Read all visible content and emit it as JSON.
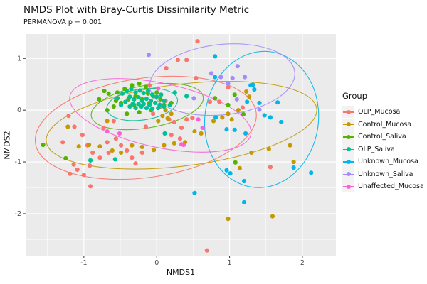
{
  "header": {
    "title": "NMDS Plot with Bray-Curtis Dissimilarity Metric",
    "subtitle": "PERMANOVA p = 0.001"
  },
  "legend": {
    "title": "Group"
  },
  "colors": {
    "panel_bg": "#EBEBEB",
    "grid": "#FFFFFF",
    "tick_text": "#4D4D4D",
    "tick_mark": "#333333",
    "legend_key_bg": "#F2F2F2"
  },
  "chart_data": {
    "type": "scatter",
    "title": "NMDS Plot with Bray-Curtis Dissimilarity Metric",
    "subtitle": "PERMANOVA p = 0.001",
    "xlabel": "NMDS1",
    "ylabel": "NMDS2",
    "xlim": [
      -1.8,
      2.46
    ],
    "ylim": [
      -2.81,
      1.47
    ],
    "x_ticks": [
      -1,
      0,
      1,
      2
    ],
    "y_ticks": [
      1,
      0,
      -1,
      -2
    ],
    "x_minor": [
      -1.5,
      -0.5,
      0.5,
      1.5
    ],
    "y_minor": [
      0.5,
      -0.5,
      -1.5,
      -2.5
    ],
    "legend_position": "right",
    "series": [
      {
        "name": "OLP_Mucosa",
        "color": "#F8766D",
        "ellipse": {
          "cx": -0.15,
          "cy": -0.34,
          "rx": 1.53,
          "ry": 0.96,
          "angle": -8
        },
        "points": [
          [
            -1.21,
            -0.11
          ],
          [
            -1.13,
            -0.32
          ],
          [
            -1.02,
            -0.48
          ],
          [
            -1.29,
            -0.62
          ],
          [
            -0.95,
            -0.68
          ],
          [
            -0.88,
            -0.82
          ],
          [
            -0.78,
            -0.92
          ],
          [
            -0.66,
            -0.82
          ],
          [
            -0.68,
            -0.62
          ],
          [
            -0.56,
            -0.55
          ],
          [
            -0.49,
            -0.68
          ],
          [
            -0.41,
            -0.78
          ],
          [
            -0.34,
            -0.92
          ],
          [
            -0.29,
            -1.03
          ],
          [
            -0.2,
            -0.82
          ],
          [
            -1.14,
            -1.05
          ],
          [
            -1.09,
            -1.15
          ],
          [
            -1.0,
            -1.25
          ],
          [
            -0.92,
            -1.07
          ],
          [
            -0.91,
            -1.47
          ],
          [
            -1.19,
            -1.23
          ],
          [
            0.29,
            0.97
          ],
          [
            0.41,
            0.97
          ],
          [
            0.56,
            1.33
          ],
          [
            0.54,
            0.62
          ],
          [
            0.73,
            0.16
          ],
          [
            0.86,
            0.16
          ],
          [
            0.17,
            -0.18
          ],
          [
            0.24,
            -0.23
          ],
          [
            0.41,
            -0.18
          ],
          [
            0.49,
            -0.15
          ],
          [
            0.32,
            -0.55
          ],
          [
            0.98,
            0.44
          ],
          [
            1.18,
            0.05
          ],
          [
            1.56,
            -1.1
          ],
          [
            0.69,
            -2.71
          ],
          [
            -0.15,
            -0.32
          ],
          [
            -0.05,
            -0.07
          ],
          [
            0.05,
            0.07
          ],
          [
            0.12,
            0.18
          ],
          [
            -0.59,
            -0.21
          ],
          [
            -0.73,
            -0.34
          ],
          [
            0.2,
            -0.48
          ],
          [
            0.34,
            -0.34
          ],
          [
            0.13,
            0.81
          ],
          [
            -0.1,
            0.48
          ]
        ]
      },
      {
        "name": "Control_Mucosa",
        "color": "#C49A00",
        "ellipse": {
          "cx": 0.34,
          "cy": -0.29,
          "rx": 1.87,
          "ry": 0.79,
          "angle": -7
        },
        "points": [
          [
            0.08,
            -0.11
          ],
          [
            0.15,
            -0.16
          ],
          [
            0.02,
            -0.21
          ],
          [
            0.2,
            -0.07
          ],
          [
            0.12,
            0.0
          ],
          [
            -1.07,
            -0.7
          ],
          [
            -0.93,
            -0.67
          ],
          [
            -0.78,
            -0.7
          ],
          [
            -0.61,
            -0.78
          ],
          [
            -0.49,
            -0.82
          ],
          [
            -0.34,
            -0.68
          ],
          [
            -0.2,
            -0.71
          ],
          [
            -0.04,
            -0.77
          ],
          [
            0.1,
            -0.68
          ],
          [
            0.24,
            -0.64
          ],
          [
            0.39,
            -0.62
          ],
          [
            0.52,
            -0.41
          ],
          [
            0.61,
            -0.45
          ],
          [
            0.78,
            -0.21
          ],
          [
            0.9,
            -0.14
          ],
          [
            1.23,
            0.36
          ],
          [
            1.27,
            0.26
          ],
          [
            1.12,
            0.0
          ],
          [
            1.03,
            -0.18
          ],
          [
            0.98,
            -0.07
          ],
          [
            1.3,
            -0.82
          ],
          [
            1.54,
            -0.75
          ],
          [
            1.83,
            -0.68
          ],
          [
            1.88,
            -1.0
          ],
          [
            1.14,
            -1.12
          ],
          [
            0.98,
            -2.1
          ],
          [
            1.59,
            -2.05
          ],
          [
            -0.68,
            -0.21
          ],
          [
            -1.22,
            -0.32
          ]
        ]
      },
      {
        "name": "Control_Saliva",
        "color": "#53B400",
        "ellipse": {
          "cx": -0.13,
          "cy": 0.07,
          "rx": 0.78,
          "ry": 0.41,
          "angle": -10
        },
        "points": [
          [
            -0.54,
            0.34
          ],
          [
            -0.44,
            0.41
          ],
          [
            -0.34,
            0.48
          ],
          [
            -0.24,
            0.51
          ],
          [
            -0.15,
            0.45
          ],
          [
            -0.29,
            0.27
          ],
          [
            -0.39,
            0.21
          ],
          [
            -0.49,
            0.14
          ],
          [
            -0.59,
            0.07
          ],
          [
            -0.68,
            0.0
          ],
          [
            -0.2,
            0.21
          ],
          [
            -0.1,
            0.14
          ],
          [
            -0.05,
            0.27
          ],
          [
            0.0,
            0.34
          ],
          [
            0.05,
            0.21
          ],
          [
            0.1,
            0.1
          ],
          [
            0.2,
            0.14
          ],
          [
            -0.08,
            0.0
          ],
          [
            -0.24,
            -0.04
          ],
          [
            -0.41,
            -0.07
          ],
          [
            -0.56,
            0.18
          ],
          [
            -0.66,
            0.32
          ],
          [
            -0.31,
            0.1
          ],
          [
            -0.12,
            0.32
          ],
          [
            -1.56,
            -0.67
          ],
          [
            -1.25,
            -0.93
          ],
          [
            0.8,
            0.23
          ],
          [
            0.98,
            0.1
          ],
          [
            1.08,
            -1.01
          ],
          [
            1.19,
            -0.08
          ],
          [
            1.07,
            0.3
          ],
          [
            -0.72,
            0.37
          ],
          [
            -0.79,
            0.21
          ]
        ]
      },
      {
        "name": "OLP_Saliva",
        "color": "#00C094",
        "ellipse": {
          "cx": -0.2,
          "cy": 0.11,
          "rx": 0.49,
          "ry": 0.3,
          "angle": -8
        },
        "points": [
          [
            -0.47,
            0.32
          ],
          [
            -0.41,
            0.37
          ],
          [
            -0.35,
            0.41
          ],
          [
            -0.29,
            0.34
          ],
          [
            -0.23,
            0.38
          ],
          [
            -0.18,
            0.33
          ],
          [
            -0.12,
            0.37
          ],
          [
            -0.06,
            0.3
          ],
          [
            0.0,
            0.26
          ],
          [
            0.06,
            0.3
          ],
          [
            -0.37,
            0.26
          ],
          [
            -0.31,
            0.21
          ],
          [
            -0.25,
            0.25
          ],
          [
            -0.2,
            0.18
          ],
          [
            -0.14,
            0.22
          ],
          [
            -0.08,
            0.18
          ],
          [
            -0.02,
            0.14
          ],
          [
            0.04,
            0.1
          ],
          [
            -0.43,
            0.16
          ],
          [
            -0.49,
            0.1
          ],
          [
            -0.37,
            0.07
          ],
          [
            -0.29,
            0.04
          ],
          [
            -0.21,
            0.07
          ],
          [
            -0.14,
            0.04
          ],
          [
            -0.06,
            0.03
          ],
          [
            0.02,
            0.04
          ],
          [
            0.1,
            0.07
          ],
          [
            -0.33,
            0.12
          ],
          [
            -0.25,
            0.12
          ],
          [
            -0.18,
            0.12
          ],
          [
            -0.1,
            0.1
          ],
          [
            -0.54,
            0.23
          ],
          [
            0.1,
            0.18
          ],
          [
            0.18,
            0.1
          ],
          [
            0.41,
            0.27
          ],
          [
            0.25,
            0.34
          ],
          [
            0.11,
            -0.45
          ],
          [
            -0.91,
            -0.97
          ],
          [
            -0.57,
            -0.95
          ]
        ]
      },
      {
        "name": "Unknown_Mucosa",
        "color": "#00B6EB",
        "ellipse": {
          "cx": 1.44,
          "cy": -0.18,
          "rx": 0.78,
          "ry": 1.32,
          "angle": 8
        },
        "points": [
          [
            0.8,
            1.04
          ],
          [
            0.8,
            0.64
          ],
          [
            1.32,
            0.49
          ],
          [
            1.34,
            0.4
          ],
          [
            1.24,
            0.16
          ],
          [
            1.41,
            0.14
          ],
          [
            1.66,
            0.15
          ],
          [
            1.48,
            -0.1
          ],
          [
            1.56,
            -0.14
          ],
          [
            1.71,
            -0.23
          ],
          [
            1.29,
            0.48
          ],
          [
            0.81,
            -0.14
          ],
          [
            0.96,
            -0.37
          ],
          [
            1.07,
            -0.38
          ],
          [
            1.22,
            -0.45
          ],
          [
            0.96,
            -1.16
          ],
          [
            1.88,
            -1.11
          ],
          [
            1.01,
            -1.22
          ],
          [
            0.52,
            -1.6
          ],
          [
            1.2,
            -1.37
          ],
          [
            1.2,
            -1.78
          ],
          [
            2.12,
            -1.21
          ]
        ]
      },
      {
        "name": "Unknown_Saliva",
        "color": "#A58AFF",
        "ellipse": {
          "cx": 0.9,
          "cy": 0.59,
          "rx": 1.0,
          "ry": 0.68,
          "angle": -6
        },
        "points": [
          [
            -0.11,
            1.07
          ],
          [
            0.75,
            0.71
          ],
          [
            0.88,
            0.64
          ],
          [
            1.04,
            0.62
          ],
          [
            1.21,
            0.64
          ],
          [
            1.11,
            0.85
          ],
          [
            0.51,
            0.23
          ],
          [
            1.1,
            0.21
          ],
          [
            1.41,
            0.01
          ],
          [
            0.98,
            0.51
          ]
        ]
      },
      {
        "name": "Unaffected_Mucosa",
        "color": "#FB61D7",
        "ellipse": {
          "cx": 0.05,
          "cy": -0.1,
          "rx": 1.27,
          "ry": 0.62,
          "angle": 12
        },
        "points": [
          [
            -0.68,
            -0.41
          ],
          [
            -0.51,
            -0.45
          ],
          [
            0.34,
            -0.66
          ],
          [
            0.63,
            -0.34
          ],
          [
            0.37,
            -0.67
          ],
          [
            0.57,
            -0.18
          ],
          [
            0.02,
            0.42
          ]
        ]
      }
    ]
  }
}
